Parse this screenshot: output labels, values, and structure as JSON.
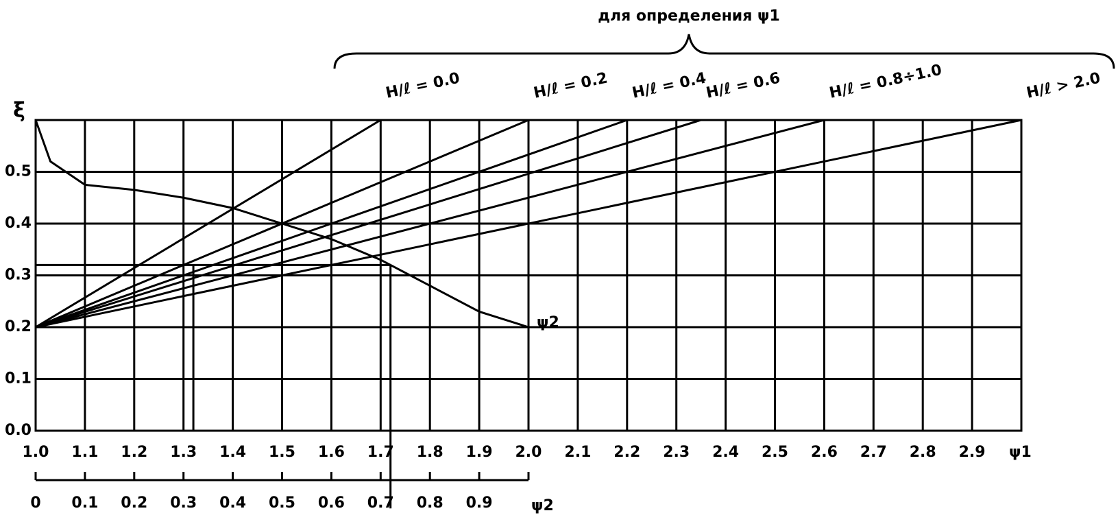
{
  "chart_data": {
    "type": "line",
    "annotation": "для определения ψ1",
    "y_label": "ξ",
    "x_label": "ψ1",
    "x2_label": "ψ2",
    "xlim": [
      1.0,
      3.0
    ],
    "ylim": [
      0,
      0.6
    ],
    "x2lim": [
      0,
      1.0
    ],
    "xticks": [
      {
        "value": 1.0,
        "label": "1.0"
      },
      1.1,
      1.2,
      1.3,
      1.4,
      1.5,
      1.6,
      1.7,
      1.8,
      1.9,
      {
        "value": 2.0,
        "label": "2.0"
      },
      2.1,
      2.2,
      2.3,
      2.4,
      2.5,
      2.6,
      2.7,
      2.8,
      2.9
    ],
    "yticks": [
      {
        "value": 0,
        "label": "0.0"
      },
      0.1,
      0.2,
      0.3,
      0.4,
      0.5
    ],
    "x2ticks": [
      0,
      0.1,
      0.2,
      0.3,
      0.4,
      0.5,
      0.6,
      0.7,
      0.8,
      0.9
    ],
    "grid": true,
    "color": "#000000",
    "series": [
      {
        "name": "H/ℓ = 0.0",
        "x": [
          1.0,
          1.7
        ],
        "values": [
          0.2,
          0.6
        ]
      },
      {
        "name": "H/ℓ = 0.2",
        "x": [
          1.0,
          2.0
        ],
        "values": [
          0.2,
          0.6
        ]
      },
      {
        "name": "H/ℓ = 0.4",
        "x": [
          1.0,
          2.2
        ],
        "values": [
          0.2,
          0.6
        ]
      },
      {
        "name": "H/ℓ = 0.6",
        "x": [
          1.0,
          2.35
        ],
        "values": [
          0.2,
          0.6
        ]
      },
      {
        "name": "H/ℓ = 0.8÷1.0",
        "x": [
          1.0,
          2.6
        ],
        "values": [
          0.2,
          0.6
        ]
      },
      {
        "name": "H/ℓ > 2.0",
        "x": [
          1.0,
          3.0
        ],
        "values": [
          0.2,
          0.6
        ]
      },
      {
        "name": "ψ2",
        "x": [
          1.0,
          1.03,
          1.1,
          1.2,
          1.3,
          1.4,
          1.5,
          1.6,
          1.7,
          1.8,
          1.9,
          2.0
        ],
        "values": [
          0.6,
          0.52,
          0.475,
          0.465,
          0.45,
          0.43,
          0.4,
          0.37,
          0.33,
          0.28,
          0.23,
          0.2
        ]
      }
    ],
    "guides": [
      {
        "x": [
          1.0,
          1.72
        ],
        "values": [
          0.32,
          0.32
        ]
      },
      {
        "x": [
          1.32,
          1.32
        ],
        "values": [
          0.32,
          0
        ]
      },
      {
        "x": [
          1.72,
          1.72
        ],
        "values": [
          0.32,
          -0.15
        ]
      }
    ]
  }
}
